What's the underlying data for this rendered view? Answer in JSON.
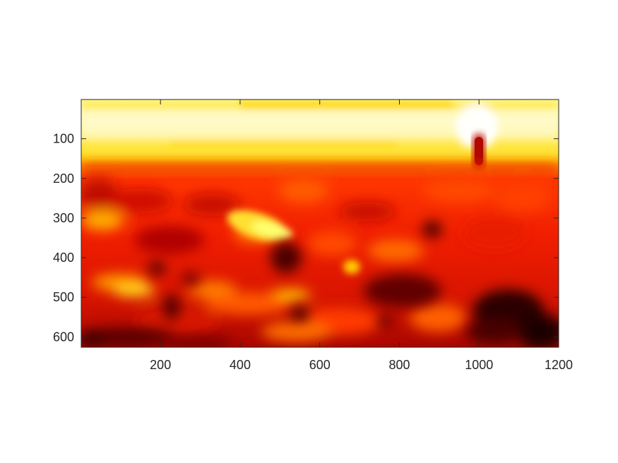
{
  "chart_data": {
    "type": "heatmap",
    "title": "",
    "xlabel": "",
    "ylabel": "",
    "colormap": "hot",
    "colorbar": false,
    "xlim": [
      1,
      1200
    ],
    "ylim": [
      1,
      626
    ],
    "y_direction": "reversed",
    "xticks": [
      200,
      400,
      600,
      800,
      1000,
      1200
    ],
    "yticks": [
      100,
      200,
      300,
      400,
      500,
      600
    ],
    "grid": false,
    "image_description_regions": [
      {
        "label": "sky-band",
        "x": [
          1,
          1200
        ],
        "y": [
          1,
          160
        ],
        "level": 0.95
      },
      {
        "label": "horizon-band",
        "x": [
          1,
          1200
        ],
        "y": [
          160,
          240
        ],
        "level": 0.62
      },
      {
        "label": "tower",
        "x": [
          990,
          1020
        ],
        "y": [
          90,
          170
        ],
        "level": 0.3
      },
      {
        "label": "bright-patch",
        "x": [
          380,
          530
        ],
        "y": [
          290,
          350
        ],
        "level": 0.9
      },
      {
        "label": "dark-patch-lower-right",
        "x": [
          1020,
          1200
        ],
        "y": [
          440,
          626
        ],
        "level": 0.08
      }
    ]
  },
  "colors": {
    "axes_edge": "#262626",
    "background": "#ffffff"
  }
}
